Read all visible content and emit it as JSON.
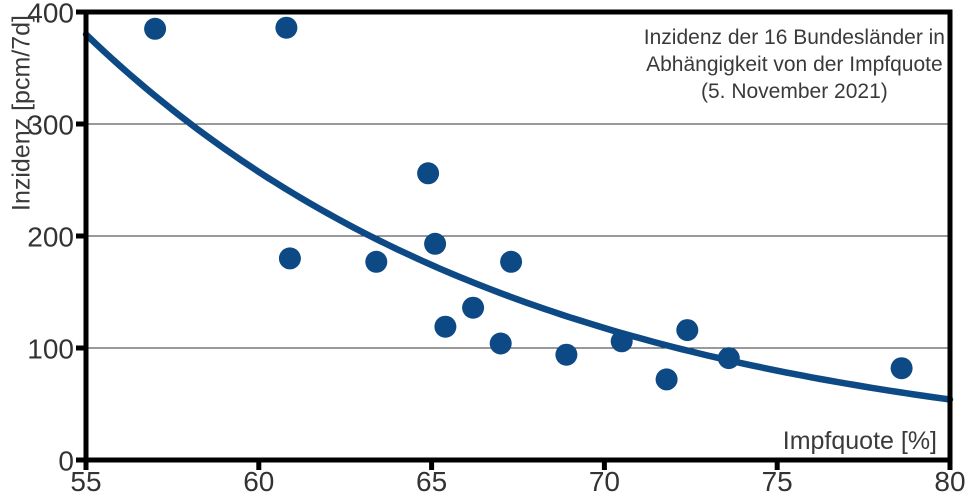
{
  "colors": {
    "series_blue": "#0d4a85",
    "axis_black": "#000000",
    "grid_gray": "#333333",
    "text_gray": "#3a3a3a"
  },
  "chart_data": {
    "type": "scatter",
    "title": "Inzidenz der 16 Bundesländer in Abhängigkeit von der Impfquote (5. November 2021)",
    "title_lines": [
      "Inzidenz der 16 Bundesländer in",
      "Abhängigkeit von der Impfquote",
      "(5. November 2021)"
    ],
    "xlabel": "Impfquote [%]",
    "ylabel": "Inzidenz [pcm/7d]",
    "xlim": [
      55,
      80
    ],
    "ylim": [
      0,
      400
    ],
    "x_ticks": [
      55,
      60,
      65,
      70,
      75,
      80
    ],
    "y_ticks": [
      0,
      100,
      200,
      300,
      400
    ],
    "grid": "horizontal-only",
    "legend": "none",
    "points": [
      {
        "x": 57.0,
        "y": 385
      },
      {
        "x": 60.8,
        "y": 386
      },
      {
        "x": 60.9,
        "y": 180
      },
      {
        "x": 63.4,
        "y": 177
      },
      {
        "x": 64.9,
        "y": 256
      },
      {
        "x": 65.1,
        "y": 193
      },
      {
        "x": 65.4,
        "y": 119
      },
      {
        "x": 66.2,
        "y": 136
      },
      {
        "x": 67.0,
        "y": 104
      },
      {
        "x": 67.3,
        "y": 177
      },
      {
        "x": 68.9,
        "y": 94
      },
      {
        "x": 70.5,
        "y": 106
      },
      {
        "x": 71.8,
        "y": 72
      },
      {
        "x": 72.4,
        "y": 116
      },
      {
        "x": 73.6,
        "y": 91
      },
      {
        "x": 78.6,
        "y": 82
      }
    ],
    "trend_line": {
      "shape": "exponential-decay",
      "start": {
        "x": 55,
        "y": 380
      },
      "end": {
        "x": 80,
        "y": 54
      }
    }
  }
}
